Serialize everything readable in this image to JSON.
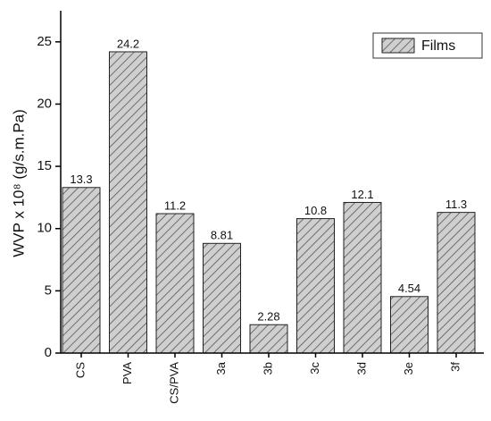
{
  "chart_data": {
    "type": "bar",
    "y_label": "WVP x 10⁸ (g/s.m.Pa)",
    "categories": [
      "CS",
      "PVA",
      "CS/PVA",
      "3a",
      "3b",
      "3c",
      "3d",
      "3e",
      "3f"
    ],
    "series": [
      {
        "name": "Films",
        "color": "#cfcfcf",
        "values": [
          13.3,
          24.2,
          11.2,
          8.81,
          2.28,
          10.8,
          12.1,
          4.54,
          11.3
        ]
      }
    ],
    "ylim": [
      0,
      27.5
    ],
    "yticks": [
      0,
      5,
      10,
      15,
      20,
      25
    ],
    "legend": "top-right",
    "hatch": true
  }
}
